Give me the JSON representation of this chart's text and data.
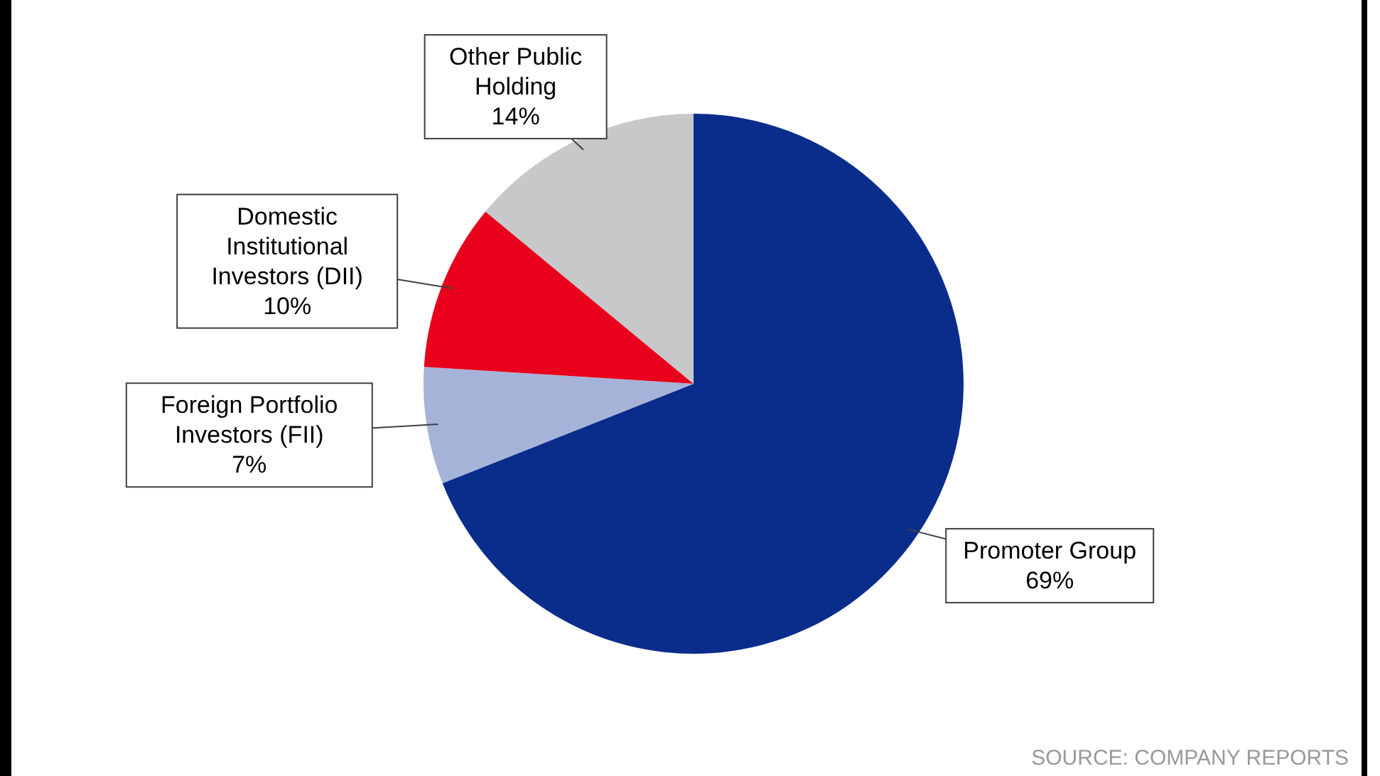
{
  "chart_data": {
    "type": "pie",
    "categories": [
      "Promoter Group",
      "Foreign Portfolio Investors (FII)",
      "Domestic Institutional Investors (DII)",
      "Other Public Holding"
    ],
    "values": [
      69,
      7,
      10,
      14
    ],
    "value_labels": [
      "69%",
      "7%",
      "10%",
      "14%"
    ],
    "colors": [
      "#0a2d8c",
      "#a6b3d9",
      "#e8001c",
      "#c7c8ca"
    ],
    "annotations": [
      "SOURCE: COMPANY REPORTS"
    ]
  }
}
